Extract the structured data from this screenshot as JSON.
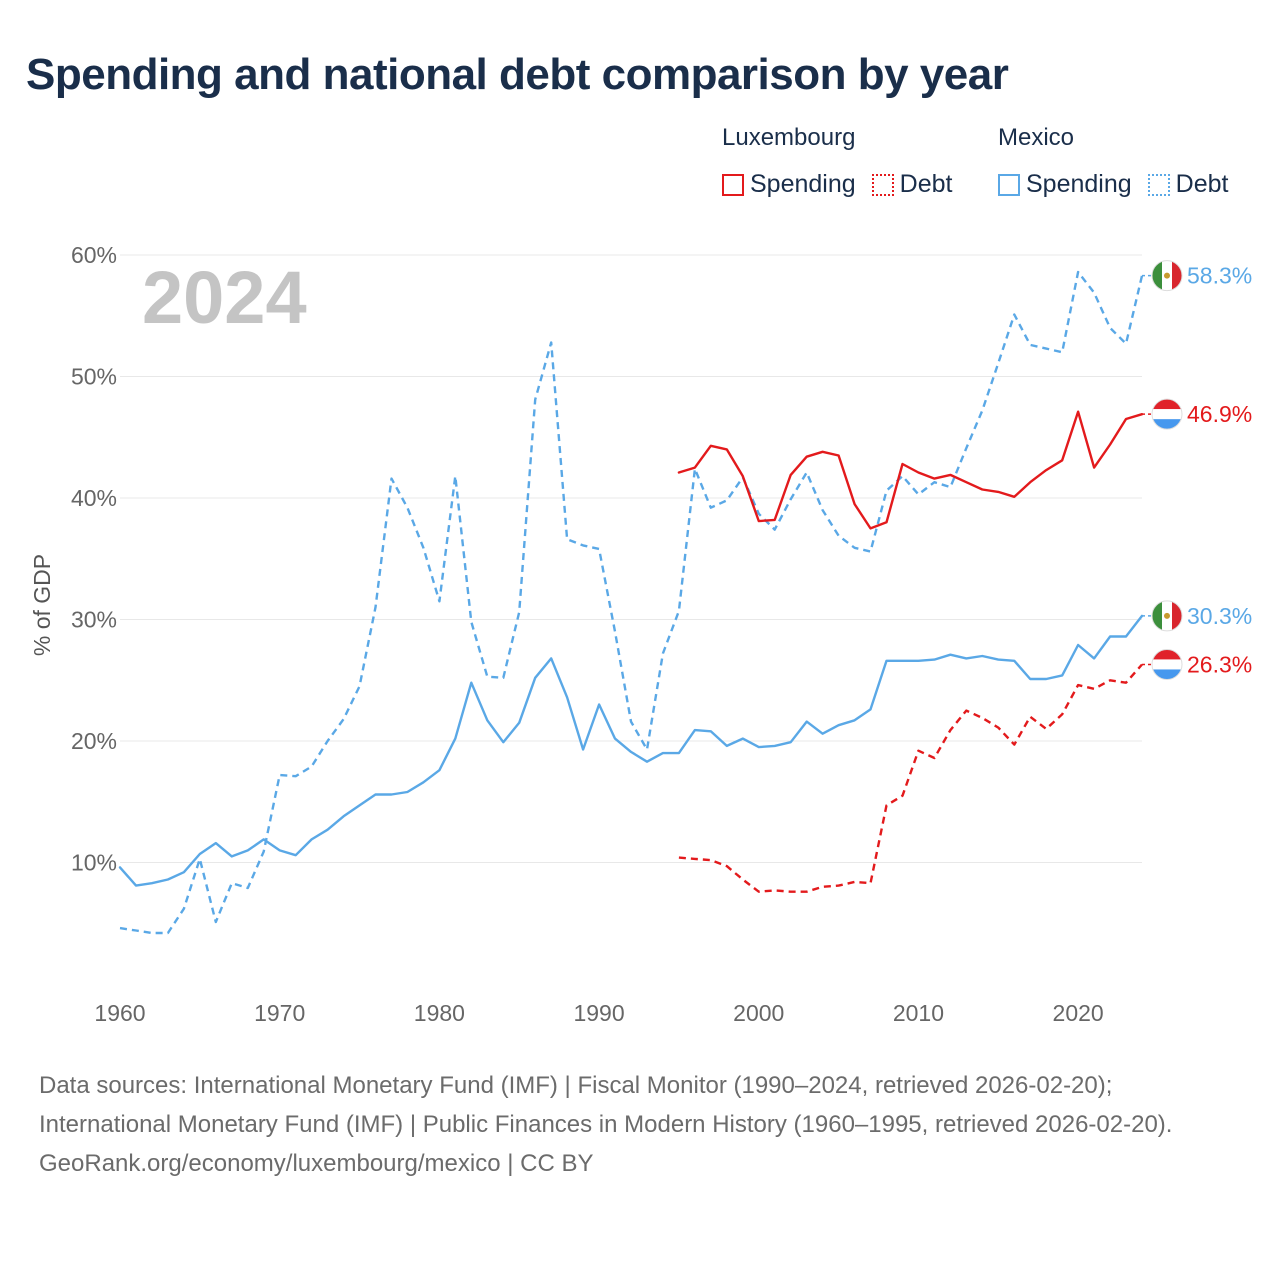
{
  "title": "Spending and national debt comparison by year",
  "legend": {
    "groups": [
      {
        "name": "Luxembourg",
        "items": [
          {
            "label": "Spending",
            "style": "solid",
            "color": "#e31a1c"
          },
          {
            "label": "Debt",
            "style": "dotted",
            "color": "#e31a1c"
          }
        ]
      },
      {
        "name": "Mexico",
        "items": [
          {
            "label": "Spending",
            "style": "solid",
            "color": "#5aa8e6"
          },
          {
            "label": "Debt",
            "style": "dotted",
            "color": "#5aa8e6"
          }
        ]
      }
    ]
  },
  "chart_data": {
    "type": "line",
    "year_label": "2024",
    "ylabel": "% of GDP",
    "xlim": [
      1960,
      2024
    ],
    "ylim": [
      0,
      60
    ],
    "x_ticks": [
      1960,
      1970,
      1980,
      1990,
      2000,
      2010,
      2020
    ],
    "y_ticks": [
      {
        "value": 10,
        "label": "10%"
      },
      {
        "value": 20,
        "label": "20%"
      },
      {
        "value": 30,
        "label": "30%"
      },
      {
        "value": 40,
        "label": "40%"
      },
      {
        "value": 50,
        "label": "50%"
      },
      {
        "value": 60,
        "label": "60%"
      }
    ],
    "series": [
      {
        "name": "Mexico Debt",
        "country": "Mexico",
        "metric": "Debt",
        "color": "#5aa8e6",
        "dashed": true,
        "start_year": 1960,
        "values": [
          4.6,
          4.4,
          4.2,
          4.2,
          6.2,
          10.3,
          5.1,
          8.3,
          7.9,
          10.9,
          17.2,
          17.1,
          17.9,
          20.0,
          21.8,
          24.5,
          31.0,
          41.6,
          39.2,
          35.9,
          31.5,
          41.8,
          29.8,
          25.3,
          25.2,
          30.6,
          48.1,
          52.8,
          36.6,
          36.1,
          35.8,
          29.0,
          21.6,
          19.3,
          27.2,
          30.7,
          42.4,
          39.2,
          39.8,
          41.7,
          38.7,
          37.4,
          39.9,
          42.1,
          39.0,
          36.9,
          35.9,
          35.6,
          40.6,
          41.8,
          40.3,
          41.3,
          40.9,
          44.1,
          47.2,
          51.1,
          55.1,
          52.6,
          52.3,
          52.0,
          58.6,
          56.9,
          54.0,
          52.7,
          58.3
        ]
      },
      {
        "name": "Mexico Spending",
        "country": "Mexico",
        "metric": "Spending",
        "color": "#5aa8e6",
        "dashed": false,
        "start_year": 1960,
        "values": [
          9.6,
          8.1,
          8.3,
          8.6,
          9.2,
          10.7,
          11.6,
          10.5,
          11.0,
          11.9,
          11.0,
          10.6,
          11.9,
          12.7,
          13.8,
          14.7,
          15.6,
          15.6,
          15.8,
          16.6,
          17.6,
          20.2,
          24.8,
          21.7,
          19.9,
          21.5,
          25.2,
          26.8,
          23.6,
          19.3,
          23.0,
          20.2,
          19.1,
          18.3,
          19.0,
          19.0,
          20.9,
          20.8,
          19.6,
          20.2,
          19.5,
          19.6,
          19.9,
          21.6,
          20.6,
          21.3,
          21.7,
          22.6,
          26.6,
          26.6,
          26.6,
          26.7,
          27.1,
          26.8,
          27.0,
          26.7,
          26.6,
          25.1,
          25.1,
          25.4,
          27.9,
          26.8,
          28.6,
          28.6,
          30.3
        ]
      },
      {
        "name": "Luxembourg Spending",
        "country": "Luxembourg",
        "metric": "Spending",
        "color": "#e31a1c",
        "dashed": false,
        "start_year": 1995,
        "values": [
          42.1,
          42.5,
          44.3,
          44.0,
          41.8,
          38.1,
          38.2,
          41.9,
          43.4,
          43.8,
          43.5,
          39.5,
          37.5,
          38.0,
          42.8,
          42.1,
          41.6,
          41.9,
          41.3,
          40.7,
          40.5,
          40.1,
          41.3,
          42.3,
          43.1,
          47.1,
          42.5,
          44.4,
          46.5,
          46.9
        ]
      },
      {
        "name": "Luxembourg Debt",
        "country": "Luxembourg",
        "metric": "Debt",
        "color": "#e31a1c",
        "dashed": true,
        "start_year": 1995,
        "values": [
          10.4,
          10.3,
          10.2,
          9.7,
          8.6,
          7.6,
          7.7,
          7.6,
          7.6,
          8.0,
          8.1,
          8.4,
          8.3,
          14.7,
          15.5,
          19.2,
          18.6,
          20.9,
          22.5,
          21.9,
          21.1,
          19.7,
          22.0,
          21.0,
          22.2,
          24.6,
          24.3,
          25.0,
          24.8,
          26.3
        ]
      }
    ],
    "end_labels": [
      {
        "series": "Mexico Debt",
        "label": "58.3%",
        "value": 58.3,
        "color": "#5aa8e6",
        "flag": "mexico-flag"
      },
      {
        "series": "Luxembourg Spending",
        "label": "46.9%",
        "value": 46.9,
        "color": "#e31a1c",
        "flag": "luxembourg-flag"
      },
      {
        "series": "Mexico Spending",
        "label": "30.3%",
        "value": 30.3,
        "color": "#5aa8e6",
        "flag": "mexico-flag"
      },
      {
        "series": "Luxembourg Debt",
        "label": "26.3%",
        "value": 26.3,
        "color": "#e31a1c",
        "flag": "luxembourg-flag"
      }
    ]
  },
  "footer": {
    "sources": "Data sources: International Monetary Fund (IMF) | Fiscal Monitor (1990–2024, retrieved 2026-02-20); International Monetary Fund (IMF) | Public Finances in Modern History (1960–1995, retrieved 2026-02-20).",
    "credit": "GeoRank.org/economy/luxembourg/mexico | CC BY"
  }
}
